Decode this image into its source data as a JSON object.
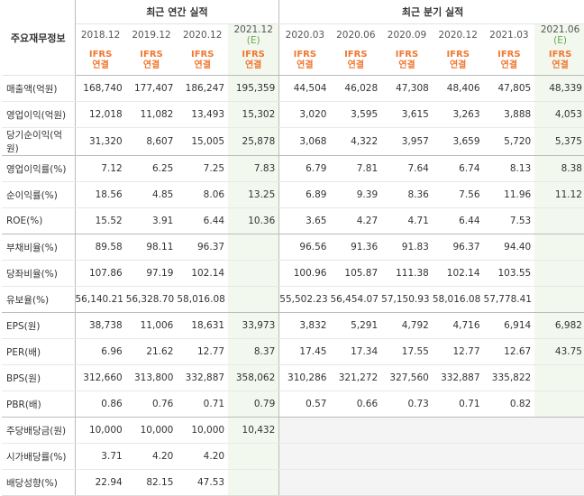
{
  "header": {
    "label": "주요재무정보",
    "annual_title": "최근 연간 실적",
    "quarter_title": "최근 분기 실적",
    "periods": [
      {
        "text": "2018.12",
        "est": ""
      },
      {
        "text": "2019.12",
        "est": ""
      },
      {
        "text": "2020.12",
        "est": ""
      },
      {
        "text": "2021.12",
        "est": "(E)"
      },
      {
        "text": "2020.03",
        "est": ""
      },
      {
        "text": "2020.06",
        "est": ""
      },
      {
        "text": "2020.09",
        "est": ""
      },
      {
        "text": "2020.12",
        "est": ""
      },
      {
        "text": "2021.03",
        "est": ""
      },
      {
        "text": "2021.06",
        "est": "(E)"
      }
    ],
    "ifrs_line1": "IFRS",
    "ifrs_line2": "연결"
  },
  "rows": [
    {
      "label": "매출액(억원)",
      "values": [
        "168,740",
        "177,407",
        "186,247",
        "195,359",
        "44,504",
        "46,028",
        "47,308",
        "48,406",
        "47,805",
        "48,339"
      ]
    },
    {
      "label": "영업이익(억원)",
      "values": [
        "12,018",
        "11,082",
        "13,493",
        "15,302",
        "3,020",
        "3,595",
        "3,615",
        "3,263",
        "3,888",
        "4,053"
      ]
    },
    {
      "label": "당기순이익(억원)",
      "values": [
        "31,320",
        "8,607",
        "15,005",
        "25,878",
        "3,068",
        "4,322",
        "3,957",
        "3,659",
        "5,720",
        "5,375"
      ]
    },
    {
      "label": "영업이익률(%)",
      "values": [
        "7.12",
        "6.25",
        "7.25",
        "7.83",
        "6.79",
        "7.81",
        "7.64",
        "6.74",
        "8.13",
        "8.38"
      ]
    },
    {
      "label": "순이익률(%)",
      "values": [
        "18.56",
        "4.85",
        "8.06",
        "13.25",
        "6.89",
        "9.39",
        "8.36",
        "7.56",
        "11.96",
        "11.12"
      ]
    },
    {
      "label": "ROE(%)",
      "values": [
        "15.52",
        "3.91",
        "6.44",
        "10.36",
        "3.65",
        "4.27",
        "4.71",
        "6.44",
        "7.53",
        ""
      ]
    },
    {
      "label": "부채비율(%)",
      "values": [
        "89.58",
        "98.11",
        "96.37",
        "",
        "96.56",
        "91.36",
        "91.83",
        "96.37",
        "94.40",
        ""
      ]
    },
    {
      "label": "당좌비율(%)",
      "values": [
        "107.86",
        "97.19",
        "102.14",
        "",
        "100.96",
        "105.87",
        "111.38",
        "102.14",
        "103.55",
        ""
      ]
    },
    {
      "label": "유보율(%)",
      "values": [
        "56,140.21",
        "56,328.70",
        "58,016.08",
        "",
        "55,502.23",
        "56,454.07",
        "57,150.93",
        "58,016.08",
        "57,778.41",
        ""
      ]
    },
    {
      "label": "EPS(원)",
      "values": [
        "38,738",
        "11,006",
        "18,631",
        "33,973",
        "3,832",
        "5,291",
        "4,792",
        "4,716",
        "6,914",
        "6,982"
      ]
    },
    {
      "label": "PER(배)",
      "values": [
        "6.96",
        "21.62",
        "12.77",
        "8.37",
        "17.45",
        "17.34",
        "17.55",
        "12.77",
        "12.67",
        "43.75"
      ]
    },
    {
      "label": "BPS(원)",
      "values": [
        "312,660",
        "313,800",
        "332,887",
        "358,062",
        "310,286",
        "321,272",
        "327,560",
        "332,887",
        "335,822",
        ""
      ]
    },
    {
      "label": "PBR(배)",
      "values": [
        "0.86",
        "0.76",
        "0.71",
        "0.79",
        "0.57",
        "0.66",
        "0.73",
        "0.71",
        "0.82",
        ""
      ]
    },
    {
      "label": "주당배당금(원)",
      "values": [
        "10,000",
        "10,000",
        "10,000",
        "10,432",
        "",
        "",
        "",
        "",
        "",
        ""
      ]
    },
    {
      "label": "시가배당률(%)",
      "values": [
        "3.71",
        "4.20",
        "4.20",
        "",
        "",
        "",
        "",
        "",
        "",
        ""
      ]
    },
    {
      "label": "배당성향(%)",
      "values": [
        "22.94",
        "82.15",
        "47.53",
        "",
        "",
        "",
        "",
        "",
        "",
        ""
      ]
    }
  ]
}
